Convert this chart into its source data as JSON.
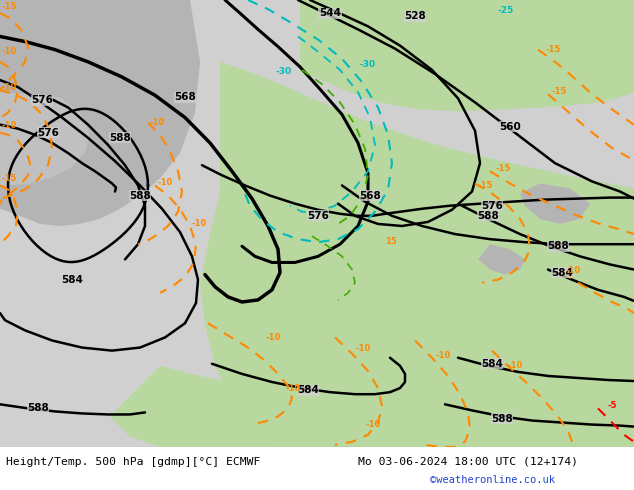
{
  "title_left": "Height/Temp. 500 hPa [gdmp][°C] ECMWF",
  "title_right": "Mo 03-06-2024 18:00 UTC (12+174)",
  "copyright": "©weatheronline.co.uk",
  "fig_width": 6.34,
  "fig_height": 4.9,
  "dpi": 100,
  "bg_grey": "#cccccc",
  "land_green": "#b8d8a0",
  "land_green2": "#c8dca8",
  "grey_land": "#b8b8b8",
  "ocean_grey": "#d0d0d0",
  "white": "#ffffff",
  "black": "#000000",
  "orange": "#ff8800",
  "red": "#ff0000",
  "cyan": "#00bbbb",
  "blue_copy": "#2244cc",
  "green_dash": "#44aa00"
}
